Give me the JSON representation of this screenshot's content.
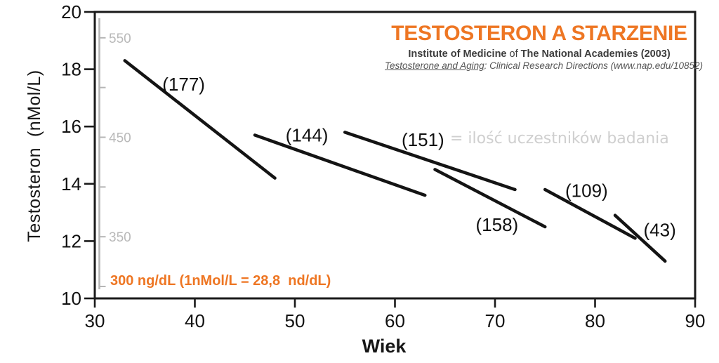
{
  "title": {
    "main": "TESTOSTERON A STARZENIE",
    "sub_parts": [
      "Institute of Medicine",
      " of ",
      "The National Academies (2003)"
    ],
    "ref_underlined": "Testosterone and Aging",
    "ref_rest": ": Clinical Research Directions (www.nap.edu/10852)"
  },
  "annotations": {
    "participants_note": "= ilość uczestników badania",
    "threshold_note": "300 ng/dL (1nMol/L = 28,8  nd/dL)"
  },
  "axes": {
    "x_label": "Wiek",
    "y_label": "Testosteron  (nMol/L)",
    "x_ticks": [
      30,
      40,
      50,
      60,
      70,
      80,
      90
    ],
    "y_ticks": [
      20,
      18,
      16,
      14,
      12,
      10
    ],
    "secondary_ticks_ngdl": [
      550,
      500,
      450,
      400,
      350,
      300
    ],
    "secondary_tick_labels": [
      550,
      450,
      350
    ]
  },
  "chart_data": {
    "type": "line",
    "title": "TESTOSTERON A STARZENIE",
    "xlabel": "Wiek",
    "ylabel": "Testosteron (nMol/L)",
    "xlim": [
      30,
      90
    ],
    "ylim": [
      10,
      20
    ],
    "grid": false,
    "legend": "none",
    "secondary_y_axis": {
      "unit": "ng/dL",
      "labeled_ticks": [
        550,
        450,
        350
      ],
      "all_ticks": [
        550,
        500,
        450,
        400,
        350,
        300
      ],
      "conversion": "1 nMol/L = 28,8 ng/dL",
      "threshold_marked": 300
    },
    "series": [
      {
        "name": "(177)",
        "n": 177,
        "points": [
          [
            33,
            18.3
          ],
          [
            48,
            14.2
          ]
        ]
      },
      {
        "name": "(144)",
        "n": 144,
        "points": [
          [
            46,
            15.7
          ],
          [
            63,
            13.6
          ]
        ]
      },
      {
        "name": "(151)",
        "n": 151,
        "points": [
          [
            55,
            15.8
          ],
          [
            72,
            13.8
          ]
        ]
      },
      {
        "name": "(158)",
        "n": 158,
        "points": [
          [
            64,
            14.5
          ],
          [
            75,
            12.5
          ]
        ]
      },
      {
        "name": "(109)",
        "n": 109,
        "points": [
          [
            75,
            13.8
          ],
          [
            84,
            12.1
          ]
        ]
      },
      {
        "name": "(43)",
        "n": 43,
        "points": [
          [
            82,
            12.9
          ],
          [
            87,
            11.3
          ]
        ]
      }
    ],
    "series_label_meaning": "ilość uczestników badania"
  },
  "colors": {
    "accent_orange": "#ee7623",
    "line_black": "#141414",
    "axis_black": "#1a1a1a",
    "gray_axis": "#b6b6b6",
    "gray_axis_label": "#b9b9b9",
    "light_gray_note": "#cfcfcf"
  }
}
